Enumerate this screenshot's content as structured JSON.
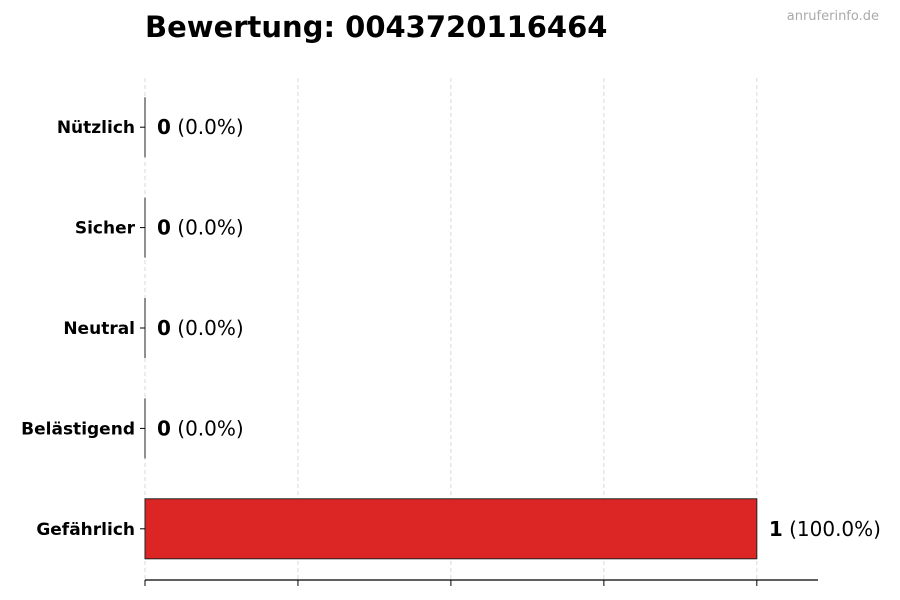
{
  "chart_data": {
    "type": "bar",
    "orientation": "horizontal",
    "title": "Bewertung: 0043720116464",
    "categories": [
      "Nützlich",
      "Sicher",
      "Neutral",
      "Belästigend",
      "Gefährlich"
    ],
    "values": [
      0,
      0,
      0,
      0,
      1
    ],
    "value_labels": [
      {
        "count": "0",
        "pct": "(0.0%)"
      },
      {
        "count": "0",
        "pct": "(0.0%)"
      },
      {
        "count": "0",
        "pct": "(0.0%)"
      },
      {
        "count": "0",
        "pct": "(0.0%)"
      },
      {
        "count": "1",
        "pct": "(100.0%)"
      }
    ],
    "xlim": [
      0,
      1.1
    ],
    "xticks": [
      0,
      0.25,
      0.5,
      0.75,
      1
    ],
    "grid": "vertical dashed",
    "bar_color": "#dc2626",
    "xlabel": "",
    "ylabel": ""
  },
  "watermark": "anruferinfo.de"
}
